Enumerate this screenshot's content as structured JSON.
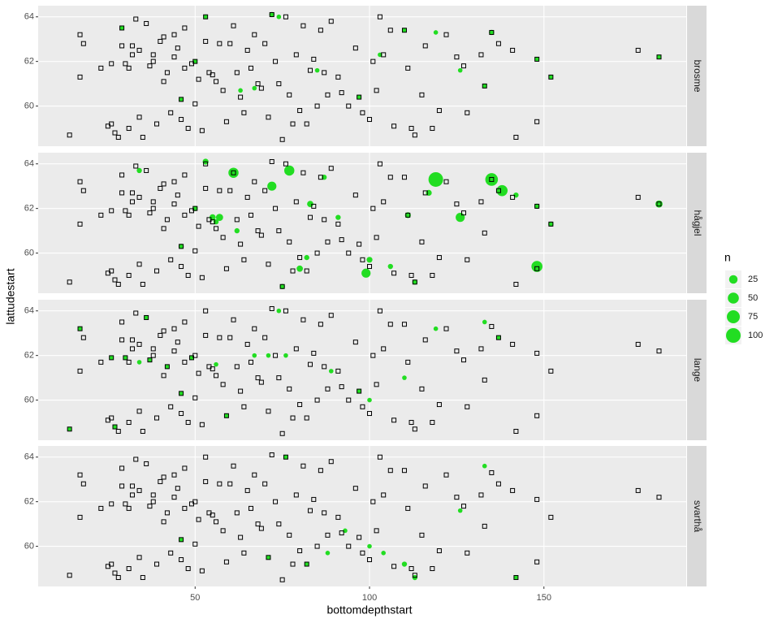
{
  "chart_data": {
    "type": "scatter",
    "x_label": "bottomdepthstart",
    "y_label": "lattudestart",
    "xlim": [
      5,
      190.8
    ],
    "xticks": [
      50,
      100,
      150
    ],
    "ylim": [
      58.2,
      64.5
    ],
    "yticks": [
      60,
      62,
      64
    ],
    "grid": true,
    "marker_color": "#22dd22",
    "stations": {
      "x": [
        14,
        17,
        17,
        18,
        23,
        25,
        26,
        26,
        27,
        28,
        29,
        29,
        30,
        31,
        31,
        32,
        32,
        34,
        34,
        33,
        35,
        36,
        37,
        38,
        38,
        39,
        40,
        41,
        41,
        42,
        43,
        44,
        44,
        45,
        46,
        46,
        47,
        47,
        48,
        49,
        50,
        50,
        51,
        52,
        53,
        53,
        54,
        55,
        56,
        57,
        58,
        59,
        60,
        61,
        62,
        63,
        64,
        65,
        66,
        67,
        68,
        69,
        70,
        71,
        72,
        73,
        74,
        75,
        76,
        77,
        78,
        79,
        80,
        81,
        82,
        83,
        84,
        85,
        86,
        87,
        88,
        89,
        91,
        92,
        94,
        96,
        97,
        98,
        100,
        101,
        102,
        103,
        104,
        106,
        107,
        110,
        111,
        112,
        113,
        115,
        116,
        118,
        120,
        122,
        125,
        127,
        128,
        132,
        133,
        135,
        137,
        141,
        142,
        148,
        148,
        152,
        177,
        183
      ],
      "y": [
        58.7,
        63.2,
        61.3,
        62.8,
        61.7,
        59.1,
        61.9,
        59.2,
        58.8,
        58.6,
        63.5,
        62.7,
        61.9,
        59.0,
        61.7,
        62.7,
        62.3,
        62.5,
        59.5,
        63.9,
        58.6,
        63.7,
        61.8,
        62.0,
        62.3,
        59.2,
        62.9,
        61.1,
        63.1,
        61.5,
        59.7,
        63.2,
        62.2,
        62.6,
        60.3,
        59.4,
        61.7,
        63.5,
        59.0,
        61.9,
        62.0,
        60.1,
        61.2,
        58.9,
        64.0,
        62.9,
        61.5,
        61.4,
        61.1,
        62.8,
        60.7,
        59.3,
        62.8,
        63.6,
        61.5,
        60.4,
        59.7,
        62.5,
        61.7,
        63.2,
        61.0,
        60.8,
        62.8,
        59.5,
        64.1,
        62.0,
        61.0,
        58.5,
        64.0,
        60.5,
        59.2,
        62.3,
        59.8,
        63.6,
        59.2,
        61.6,
        62.1,
        60.0,
        63.4,
        61.5,
        60.5,
        63.8,
        61.3,
        60.6,
        60.0,
        62.6,
        60.4,
        59.7,
        59.4,
        62.0,
        60.7,
        64.0,
        62.3,
        63.4,
        59.1,
        63.4,
        61.7,
        59.0,
        58.7,
        60.5,
        62.7,
        59.0,
        59.8,
        63.2,
        62.2,
        61.8,
        59.7,
        62.3,
        60.9,
        63.3,
        62.8,
        62.5,
        58.6,
        62.1,
        59.3,
        61.3,
        62.5,
        62.2
      ]
    },
    "facets": [
      {
        "name": "brosme",
        "x": [
          29,
          46,
          53,
          72,
          74,
          85,
          97,
          103,
          110,
          119,
          126,
          133,
          135,
          148,
          152,
          183,
          50,
          63,
          67
        ],
        "y": [
          63.5,
          60.3,
          64.0,
          64.1,
          64.0,
          61.6,
          60.4,
          62.3,
          63.4,
          63.3,
          61.6,
          60.9,
          63.3,
          62.1,
          61.3,
          62.2,
          62.0,
          60.7,
          60.8
        ],
        "n": [
          3,
          3,
          3,
          5,
          3,
          3,
          3,
          3,
          3,
          3,
          3,
          3,
          5,
          3,
          3,
          3,
          3,
          3,
          3
        ]
      },
      {
        "name": "hågjel",
        "x": [
          61,
          72,
          77,
          119,
          135,
          138,
          126,
          148,
          99,
          183,
          53,
          57,
          55,
          46,
          34,
          50,
          83,
          87,
          100,
          113,
          117,
          152,
          142,
          148,
          111,
          106,
          75,
          80,
          82,
          91,
          62,
          56
        ],
        "y": [
          63.6,
          63.0,
          63.7,
          63.3,
          63.3,
          62.8,
          61.6,
          59.4,
          59.1,
          62.2,
          64.1,
          61.6,
          61.6,
          60.3,
          63.7,
          62.0,
          62.2,
          63.4,
          59.7,
          58.7,
          62.7,
          61.3,
          62.6,
          62.1,
          61.7,
          59.4,
          58.5,
          59.3,
          59.8,
          61.6,
          61.0,
          61.4
        ],
        "n": [
          40,
          30,
          40,
          100,
          70,
          50,
          30,
          50,
          30,
          15,
          8,
          15,
          10,
          5,
          5,
          5,
          10,
          5,
          8,
          5,
          8,
          5,
          5,
          5,
          8,
          5,
          5,
          10,
          5,
          5,
          5,
          5
        ]
      },
      {
        "name": "lange",
        "x": [
          14,
          17,
          27,
          30,
          34,
          36,
          37,
          42,
          46,
          49,
          59,
          67,
          71,
          74,
          76,
          89,
          97,
          100,
          110,
          119,
          133,
          137,
          26,
          56
        ],
        "y": [
          58.7,
          63.2,
          58.8,
          61.9,
          61.7,
          63.7,
          61.8,
          61.5,
          60.3,
          61.9,
          59.3,
          62.0,
          62.0,
          64.0,
          62.0,
          61.3,
          60.4,
          60.0,
          61.0,
          63.2,
          63.5,
          62.8,
          61.9,
          61.6
        ],
        "n": [
          3,
          3,
          3,
          3,
          3,
          3,
          3,
          3,
          3,
          3,
          3,
          3,
          3,
          3,
          3,
          3,
          3,
          3,
          3,
          3,
          3,
          3,
          3,
          3
        ]
      },
      {
        "name": "svarthå",
        "x": [
          76,
          71,
          82,
          88,
          93,
          100,
          104,
          110,
          113,
          126,
          133,
          142,
          46
        ],
        "y": [
          64.0,
          59.5,
          59.2,
          59.7,
          60.7,
          60.0,
          59.7,
          59.2,
          58.6,
          61.6,
          63.6,
          58.6,
          60.3
        ],
        "n": [
          3,
          3,
          3,
          3,
          3,
          3,
          3,
          5,
          5,
          3,
          3,
          3,
          3
        ]
      }
    ],
    "legend": {
      "title": "n",
      "values": [
        25,
        50,
        75,
        100
      ]
    }
  }
}
